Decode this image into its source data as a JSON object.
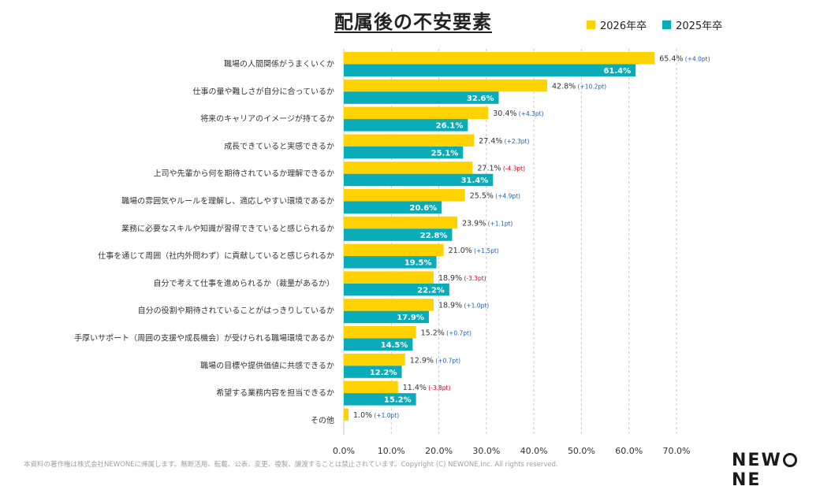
{
  "chart_data": {
    "type": "bar",
    "orientation": "horizontal",
    "title": "配属後の不安要素",
    "categories": [
      "職場の人間関係がうまくいくか",
      "仕事の量や難しさが自分に合っているか",
      "将来のキャリアのイメージが持てるか",
      "成長できていると実感できるか",
      "上司や先輩から何を期待されているか理解できるか",
      "職場の雰囲気やルールを理解し、適応しやすい環境であるか",
      "業務に必要なスキルや知識が習得できていると感じられるか",
      "仕事を通じて周囲（社内外問わず）に貢献していると感じられるか",
      "自分で考えて仕事を進められるか（裁量があるか）",
      "自分の役割や期待されていることがはっきりしているか",
      "手厚いサポート（周囲の支援や成長機会）が受けられる職場環境であるか",
      "職場の目標や提供価値に共感できるか",
      "希望する業務内容を担当できるか",
      "その他"
    ],
    "series": [
      {
        "name": "2026年卒",
        "color": "#FFD200",
        "values": [
          65.4,
          42.8,
          30.4,
          27.4,
          27.1,
          25.5,
          23.9,
          21.0,
          18.9,
          18.9,
          15.2,
          12.9,
          11.4,
          1.0
        ],
        "labels": [
          "65.4%",
          "42.8%",
          "30.4%",
          "27.4%",
          "27.1%",
          "25.5%",
          "23.9%",
          "21.0%",
          "18.9%",
          "18.9%",
          "15.2%",
          "12.9%",
          "11.4%",
          "1.0%"
        ],
        "diffs": [
          "(+4.0pt)",
          "(+10.2pt)",
          "(+4.3pt)",
          "(+2.3pt)",
          "(-4.3pt)",
          "(+4.9pt)",
          "(+1.1pt)",
          "(+1.5pt)",
          "(-3.3pt)",
          "(+1.0pt)",
          "(+0.7pt)",
          "(+0.7pt)",
          "(-3.8pt)",
          "(+1.0pt)"
        ]
      },
      {
        "name": "2025年卒",
        "color": "#0AACB9",
        "values": [
          61.4,
          32.6,
          26.1,
          25.1,
          31.4,
          20.6,
          22.8,
          19.5,
          22.2,
          17.9,
          14.5,
          12.2,
          15.2,
          null
        ],
        "labels": [
          "61.4%",
          "32.6%",
          "26.1%",
          "25.1%",
          "31.4%",
          "20.6%",
          "22.8%",
          "19.5%",
          "22.2%",
          "17.9%",
          "14.5%",
          "12.2%",
          "15.2%",
          null
        ]
      }
    ],
    "xlim": [
      0,
      70
    ],
    "xticks": [
      0,
      10,
      20,
      30,
      40,
      50,
      60,
      70
    ],
    "xtick_labels": [
      "0.0%",
      "10.0%",
      "20.0%",
      "30.0%",
      "40.0%",
      "50.0%",
      "60.0%",
      "70.0%"
    ],
    "grid": true,
    "grid_style": "dashed vertical",
    "legend_position": "top-right",
    "diff_colors": {
      "positive": "#1F5FAD",
      "negative": "#D0021B"
    }
  },
  "footer": "本資料の著作権は株式会社NEWONEに帰属します。無断活用、転載、公表、変更、複製、譲渡することは禁止されています。Copyright (C) NEWONE,Inc.  All rights reserved.",
  "logo": {
    "text": "NEWONE"
  }
}
